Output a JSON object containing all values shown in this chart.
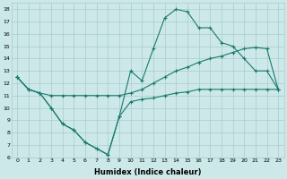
{
  "xlabel": "Humidex (Indice chaleur)",
  "bg_color": "#cce8e8",
  "line_color": "#1a7a6e",
  "grid_color": "#aacccc",
  "xlim": [
    -0.5,
    23.5
  ],
  "ylim": [
    6,
    18.5
  ],
  "xticks": [
    0,
    1,
    2,
    3,
    4,
    5,
    6,
    7,
    8,
    9,
    10,
    11,
    12,
    13,
    14,
    15,
    16,
    17,
    18,
    19,
    20,
    21,
    22,
    23
  ],
  "yticks": [
    6,
    7,
    8,
    9,
    10,
    11,
    12,
    13,
    14,
    15,
    16,
    17,
    18
  ],
  "line1_x": [
    0,
    1,
    2,
    3,
    4,
    5,
    6,
    7,
    8,
    9,
    10,
    11,
    12,
    13,
    14,
    15,
    16,
    17,
    18,
    19,
    20,
    21,
    22,
    23
  ],
  "line1_y": [
    12.5,
    11.5,
    11.2,
    11.0,
    11.0,
    11.0,
    11.0,
    11.0,
    11.0,
    11.0,
    11.2,
    11.5,
    12.0,
    12.5,
    13.0,
    13.3,
    13.7,
    14.0,
    14.2,
    14.5,
    14.8,
    14.9,
    14.8,
    11.5
  ],
  "line2_x": [
    0,
    1,
    2,
    3,
    4,
    5,
    6,
    7,
    8,
    9,
    10,
    11,
    12,
    13,
    14,
    15,
    16,
    17,
    18,
    19,
    20,
    21,
    22,
    23
  ],
  "line2_y": [
    12.5,
    11.5,
    11.2,
    10.0,
    8.7,
    8.2,
    7.2,
    6.7,
    6.2,
    9.3,
    13.0,
    12.2,
    14.8,
    17.3,
    18.0,
    17.8,
    16.5,
    16.5,
    15.3,
    15.0,
    14.0,
    13.0,
    13.0,
    11.5
  ],
  "line3_x": [
    0,
    1,
    2,
    3,
    4,
    5,
    6,
    7,
    8,
    9,
    10,
    11,
    12,
    13,
    14,
    15,
    16,
    17,
    18,
    19,
    20,
    21,
    22,
    23
  ],
  "line3_y": [
    12.5,
    11.5,
    11.2,
    10.0,
    8.7,
    8.2,
    7.2,
    6.7,
    6.2,
    9.3,
    10.5,
    10.7,
    10.8,
    11.0,
    11.2,
    11.3,
    11.5,
    11.5,
    11.5,
    11.5,
    11.5,
    11.5,
    11.5,
    11.5
  ],
  "marker": "+",
  "markersize": 3,
  "linewidth": 0.8,
  "tick_fontsize": 4.5,
  "xlabel_fontsize": 6.0
}
